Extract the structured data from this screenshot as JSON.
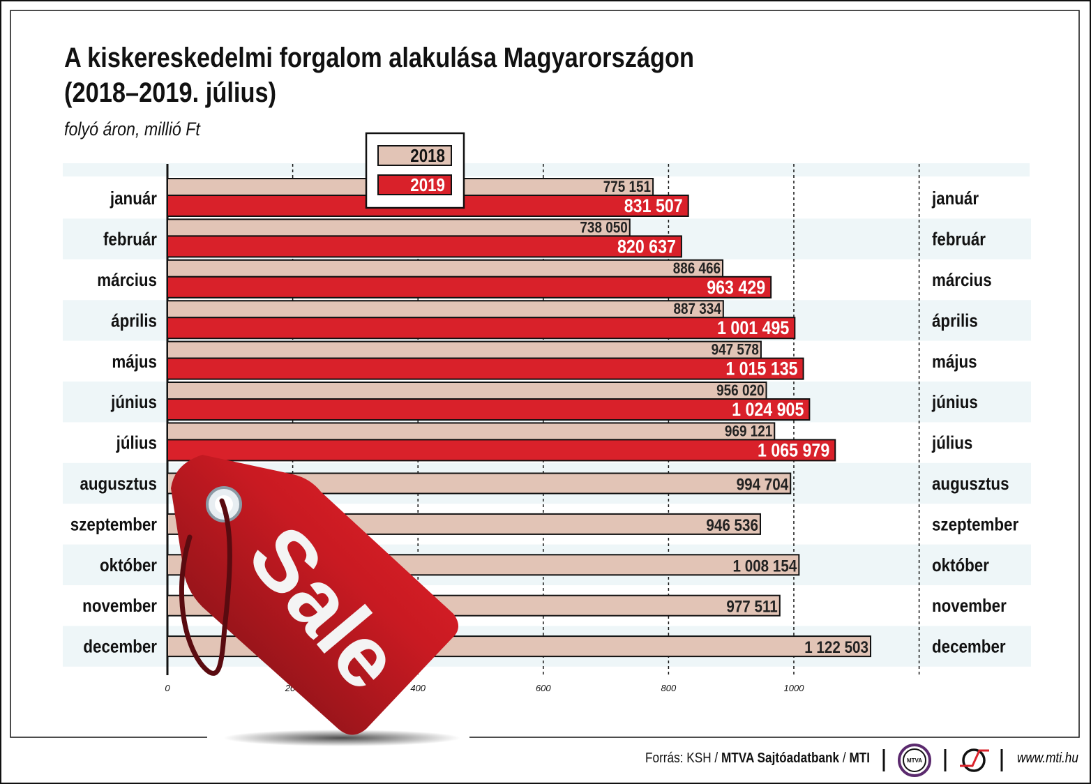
{
  "chart_data": {
    "type": "bar",
    "orientation": "horizontal",
    "title": "A kiskereskedelmi forgalom alakulása Magyarországon (2018–2019. július)",
    "title_lines": [
      "A kiskereskedelmi forgalom alakulása Magyarországon",
      "(2018–2019. július)"
    ],
    "subtitle": "folyó áron, millió Ft",
    "categories": [
      "január",
      "február",
      "március",
      "április",
      "május",
      "június",
      "július",
      "augusztus",
      "szeptember",
      "október",
      "november",
      "december"
    ],
    "series": [
      {
        "name": "2018",
        "color": "#e2c4b6",
        "values": [
          775151,
          738050,
          886466,
          887334,
          947578,
          956020,
          969121,
          994704,
          946536,
          1008154,
          977511,
          1122503
        ],
        "labels": [
          "775 151",
          "738 050",
          "886 466",
          "887 334",
          "947 578",
          "956 020",
          "969 121",
          "994 704",
          "946 536",
          "1 008 154",
          "977 511",
          "1 122 503"
        ]
      },
      {
        "name": "2019",
        "color": "#d9212a",
        "values": [
          831507,
          820637,
          963429,
          1001495,
          1015135,
          1024905,
          1065979,
          null,
          null,
          null,
          null,
          null
        ],
        "labels": [
          "831 507",
          "820 637",
          "963 429",
          "1 001 495",
          "1 015 135",
          "1 024 905",
          "1 065 979",
          "",
          "",
          "",
          "",
          ""
        ]
      }
    ],
    "x_ticks": [
      "0",
      "200",
      "400",
      "600",
      "800",
      "1000"
    ],
    "xlim": [
      0,
      1200
    ],
    "x_tick_unit_note": "",
    "grid": "vertical dashed",
    "legend": "top-center"
  },
  "decoration": {
    "tag_text": "Sale"
  },
  "footer": {
    "source_prefix": "Forrás: KSH / ",
    "source_bold": "MTVA Sajtóadatbank",
    "source_sep": " / ",
    "source_mti": "MTI",
    "logo_mtva": "MTVA",
    "website": "www.mti.hu"
  }
}
